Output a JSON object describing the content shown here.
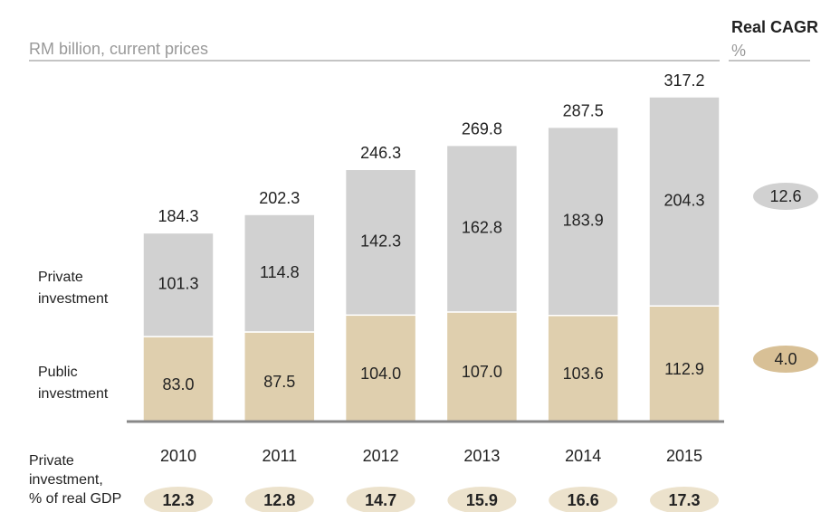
{
  "chart_data": {
    "type": "stacked_bar",
    "subtitle": "RM billion, current prices",
    "categories": [
      "2010",
      "2011",
      "2012",
      "2013",
      "2014",
      "2015"
    ],
    "series": [
      {
        "name": "Public investment",
        "color": "#dfcfae",
        "values": [
          83.0,
          87.5,
          104.0,
          107.0,
          103.6,
          112.9
        ],
        "value_labels": [
          "83.0",
          "87.5",
          "104.0",
          "107.0",
          "103.6",
          "112.9"
        ],
        "cagr": 4.0,
        "cagr_label": "4.0",
        "cagr_color": "#d8c096"
      },
      {
        "name": "Private investment",
        "color": "#d1d1d1",
        "values": [
          101.3,
          114.8,
          142.3,
          162.8,
          183.9,
          204.3
        ],
        "value_labels": [
          "101.3",
          "114.8",
          "142.3",
          "162.8",
          "183.9",
          "204.3"
        ],
        "cagr": 12.6,
        "cagr_color": "#d1d1d1"
      }
    ],
    "totals": [
      184.3,
      202.3,
      246.3,
      269.8,
      287.5,
      317.2
    ],
    "cagr_title": "Real CAGR",
    "cagr_unit": "%",
    "gdp_share": {
      "label_lines": [
        "Private",
        "investment,",
        "% of real GDP"
      ],
      "color": "#ece2cc",
      "values": [
        12.3,
        12.8,
        14.7,
        15.9,
        16.6,
        17.3
      ]
    }
  }
}
